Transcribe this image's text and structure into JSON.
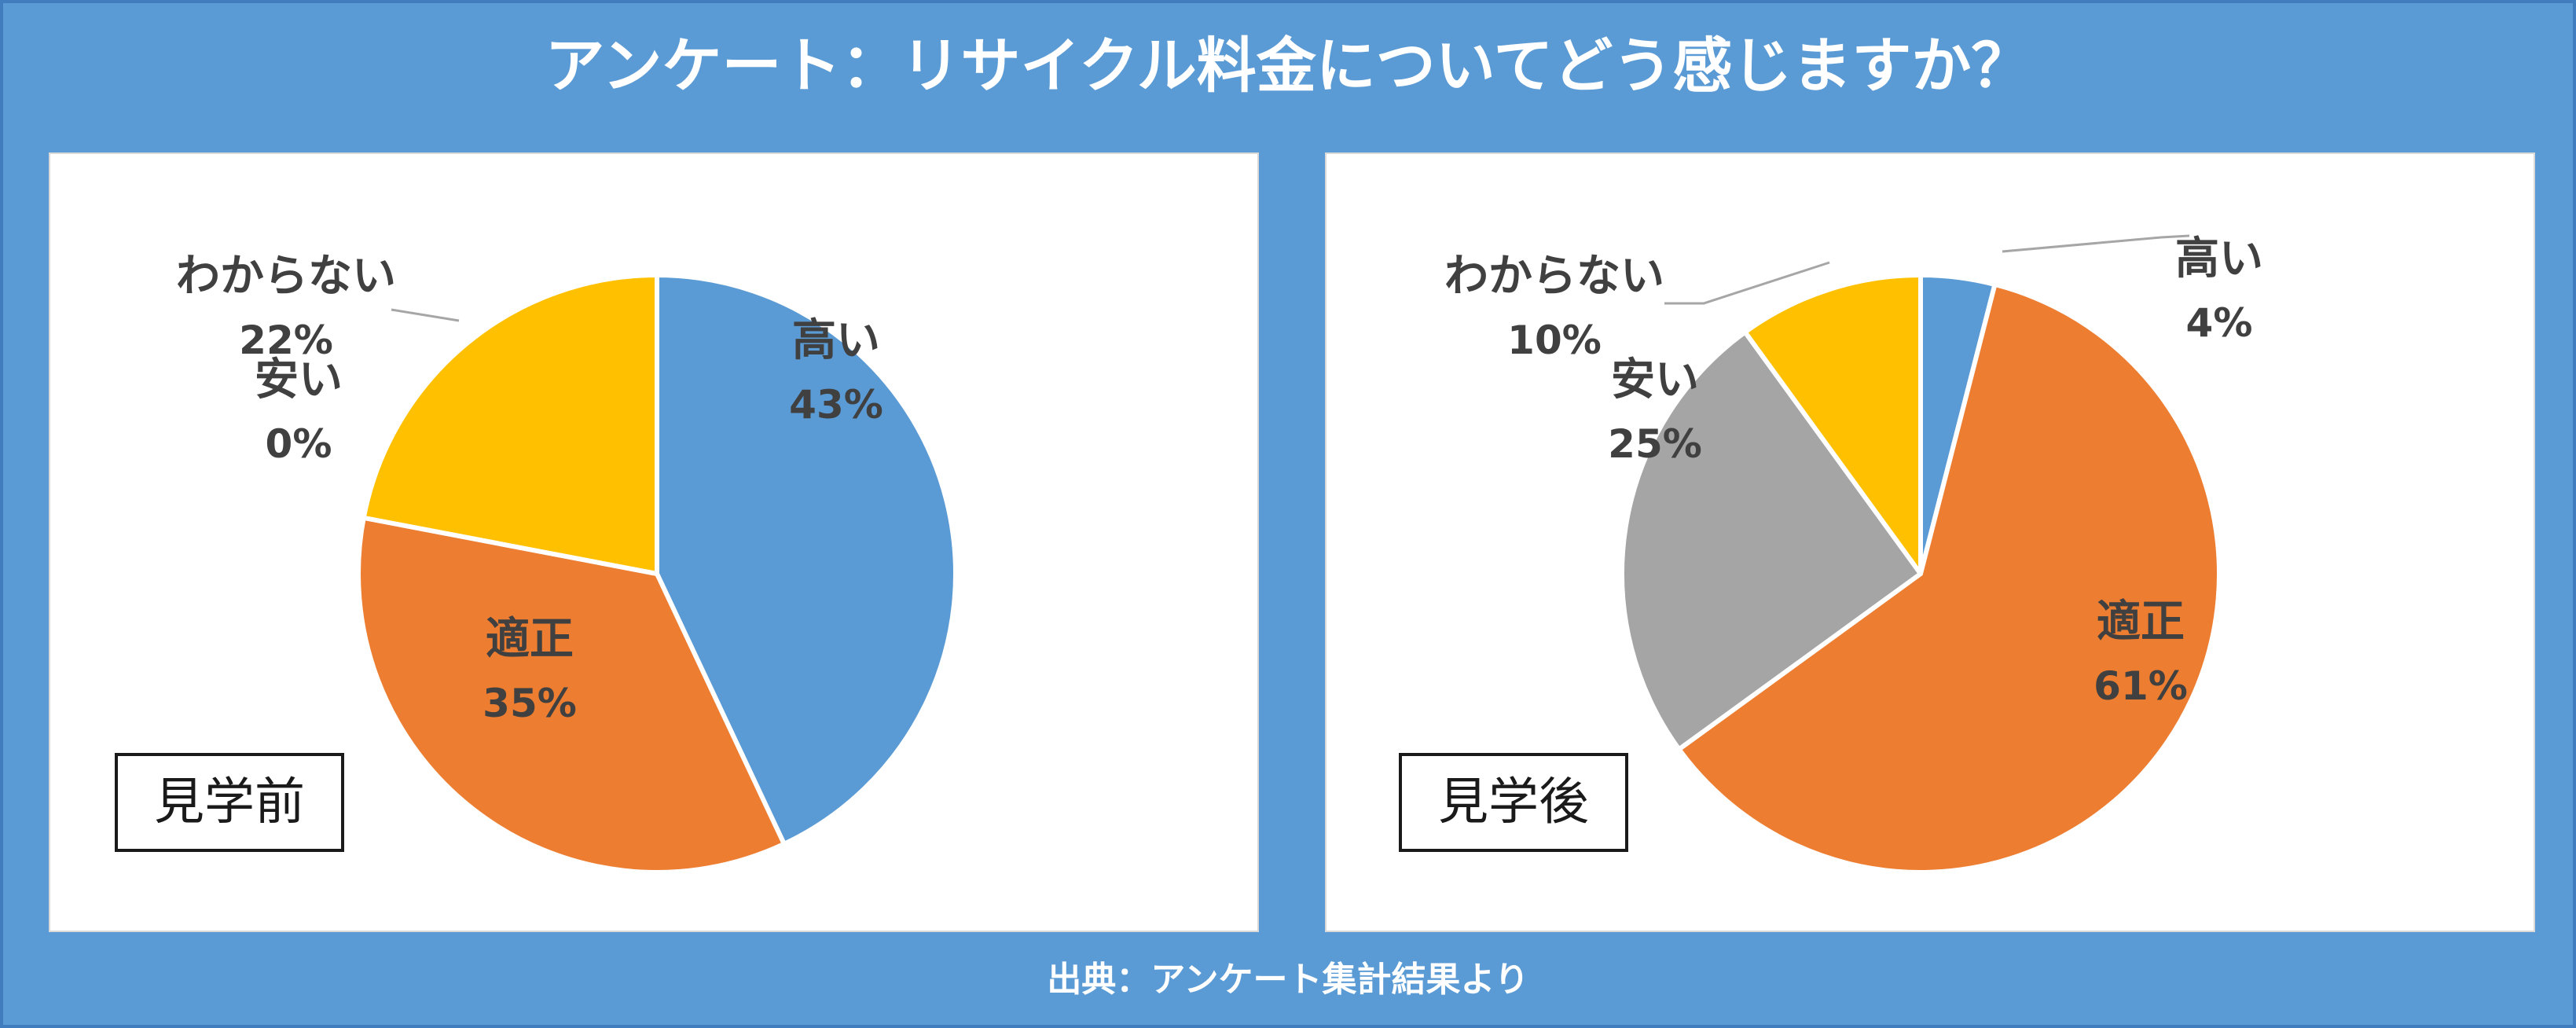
{
  "title": "アンケート：リサイクル料金についてどう感じますか？",
  "footer": "出典：アンケート集計結果より",
  "colors": {
    "background": "#5b9bd5",
    "高い": "#5b9bd5",
    "適正": "#ed7d31",
    "安い": "#a5a5a5",
    "わからない": "#ffc000"
  },
  "chart_data": [
    {
      "type": "pie",
      "title": "見学前",
      "unit": "%",
      "categories": [
        "高い",
        "適正",
        "安い",
        "わからない"
      ],
      "values": [
        43,
        35,
        0,
        22
      ],
      "value_labels": [
        "43%",
        "35%",
        "0%",
        "22%"
      ]
    },
    {
      "type": "pie",
      "title": "見学後",
      "unit": "%",
      "categories": [
        "高い",
        "適正",
        "安い",
        "わからない"
      ],
      "values": [
        4,
        61,
        25,
        10
      ],
      "value_labels": [
        "4%",
        "61%",
        "25%",
        "10%"
      ]
    }
  ]
}
